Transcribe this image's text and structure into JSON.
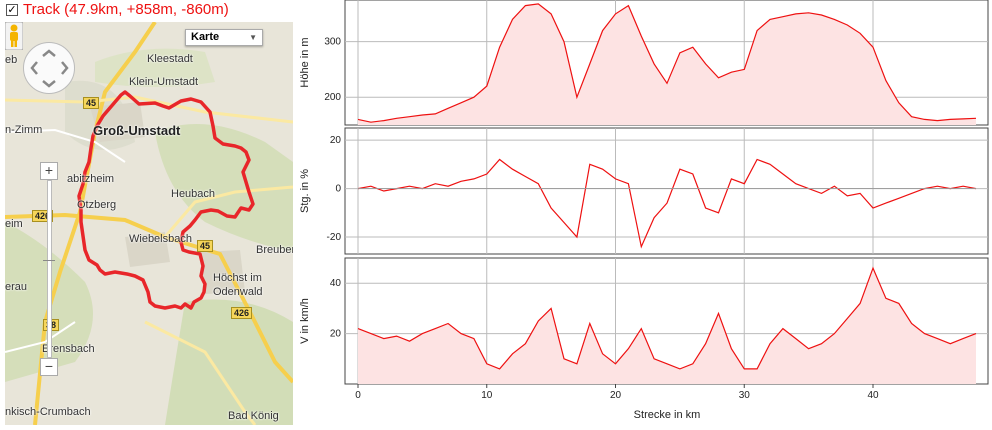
{
  "header": {
    "checkbox_checked": true,
    "title": "Track (47.9km, +858m, -860m)"
  },
  "map": {
    "type_select": "Karte",
    "labels": {
      "kleestadt": "Kleestadt",
      "klein_umstadt": "Klein-Umstadt",
      "gross_umstadt": "Groß-Umstadt",
      "zimm": "n-Zimm",
      "habitzheim": "abitzheim",
      "heubach": "Heubach",
      "otzberg": "Otzberg",
      "heim": "eim",
      "wiebelsbach": "Wiebelsbach",
      "breuberg": "Breuberg",
      "hoechst": "Höchst im",
      "odenwald": "Odenwald",
      "erau": "erau",
      "erensbach": "Erensbach",
      "crumbach": "nkisch-Crumbach",
      "bad_koenig": "Bad König",
      "eb": "eb"
    },
    "road_badges": {
      "b45a": "45",
      "b426a": "426",
      "b45b": "45",
      "b426b": "426",
      "b38": "38"
    },
    "route_color": "#e8262a"
  },
  "chart_data": [
    {
      "type": "area",
      "name": "elevation",
      "ylabel": "Höhe in m",
      "yticks": [
        200,
        300
      ],
      "ylim": [
        150,
        375
      ],
      "xlim": [
        0,
        48
      ],
      "color": "#e11",
      "fill": "#fde3e3",
      "x": [
        0,
        1,
        2,
        3,
        4,
        5,
        6,
        7,
        8,
        9,
        10,
        11,
        12,
        13,
        14,
        15,
        16,
        17,
        18,
        19,
        20,
        21,
        22,
        23,
        24,
        25,
        26,
        27,
        28,
        29,
        30,
        31,
        32,
        33,
        34,
        35,
        36,
        37,
        38,
        39,
        40,
        41,
        42,
        43,
        44,
        45,
        46,
        47,
        48
      ],
      "values": [
        160,
        155,
        158,
        162,
        165,
        168,
        170,
        180,
        190,
        200,
        220,
        290,
        340,
        365,
        368,
        350,
        300,
        200,
        260,
        320,
        350,
        365,
        310,
        260,
        225,
        280,
        290,
        260,
        235,
        245,
        250,
        320,
        340,
        345,
        350,
        352,
        348,
        340,
        330,
        315,
        290,
        230,
        190,
        165,
        160,
        158,
        160,
        161,
        162
      ]
    },
    {
      "type": "line",
      "name": "gradient",
      "ylabel": "Stg. in %",
      "yticks": [
        -20,
        0,
        20
      ],
      "ylim": [
        -27,
        25
      ],
      "xlim": [
        0,
        48
      ],
      "color": "#e11",
      "x": [
        0,
        1,
        2,
        3,
        4,
        5,
        6,
        7,
        8,
        9,
        10,
        11,
        12,
        13,
        14,
        15,
        16,
        17,
        18,
        19,
        20,
        21,
        22,
        23,
        24,
        25,
        26,
        27,
        28,
        29,
        30,
        31,
        32,
        33,
        34,
        35,
        36,
        37,
        38,
        39,
        40,
        41,
        42,
        43,
        44,
        45,
        46,
        47,
        48
      ],
      "values": [
        0,
        1,
        -1,
        0,
        1,
        0,
        2,
        1,
        3,
        4,
        6,
        12,
        8,
        5,
        2,
        -8,
        -14,
        -20,
        10,
        8,
        4,
        2,
        -24,
        -12,
        -6,
        8,
        6,
        -8,
        -10,
        4,
        2,
        12,
        10,
        6,
        2,
        0,
        -2,
        1,
        -3,
        -2,
        -8,
        -6,
        -4,
        -2,
        0,
        1,
        0,
        1,
        0
      ]
    },
    {
      "type": "area",
      "name": "speed",
      "ylabel": "V in km/h",
      "yticks": [
        20,
        40
      ],
      "ylim": [
        0,
        50
      ],
      "xlim": [
        0,
        48
      ],
      "xticks": [
        0,
        10,
        20,
        30,
        40
      ],
      "xlabel": "Strecke in km",
      "color": "#e11",
      "fill": "#fde3e3",
      "x": [
        0,
        1,
        2,
        3,
        4,
        5,
        6,
        7,
        8,
        9,
        10,
        11,
        12,
        13,
        14,
        15,
        16,
        17,
        18,
        19,
        20,
        21,
        22,
        23,
        24,
        25,
        26,
        27,
        28,
        29,
        30,
        31,
        32,
        33,
        34,
        35,
        36,
        37,
        38,
        39,
        40,
        41,
        42,
        43,
        44,
        45,
        46,
        47,
        48
      ],
      "values": [
        22,
        20,
        18,
        19,
        17,
        20,
        22,
        24,
        20,
        18,
        8,
        6,
        12,
        16,
        25,
        30,
        10,
        8,
        24,
        12,
        8,
        14,
        22,
        10,
        8,
        6,
        8,
        16,
        28,
        14,
        6,
        6,
        16,
        22,
        18,
        14,
        16,
        20,
        26,
        32,
        46,
        34,
        32,
        24,
        20,
        18,
        16,
        18,
        20
      ]
    }
  ]
}
